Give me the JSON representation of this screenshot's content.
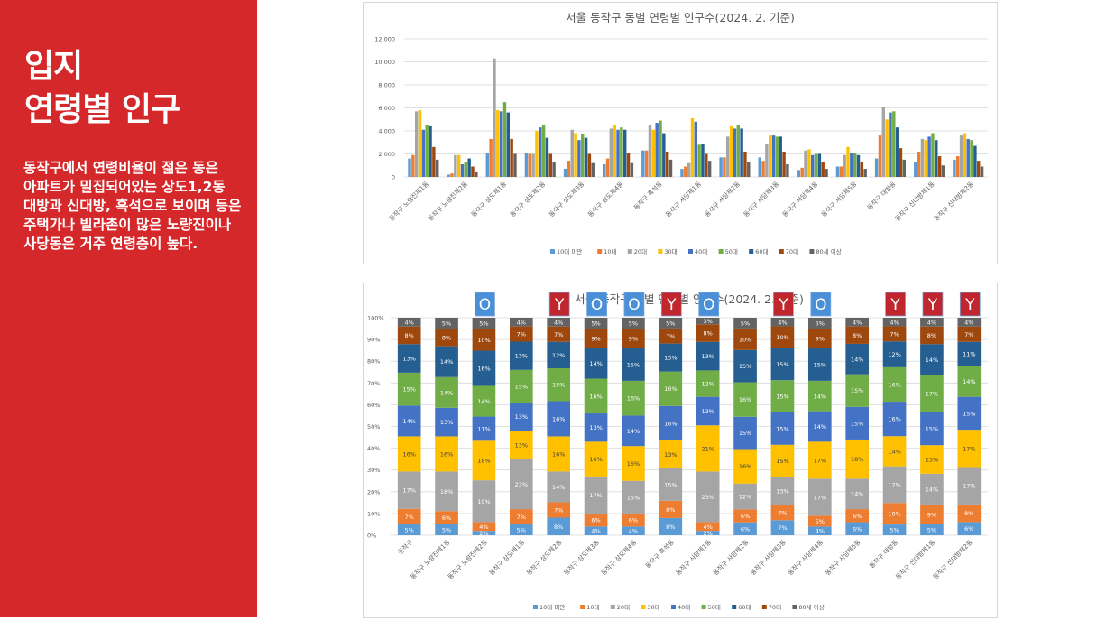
{
  "slide": {
    "title1": "입지",
    "title2": "연령별 인구",
    "description": "동작구에서 연령비율이 젊은 동은 아파트가 밀집되어있는 상도1,2동 대방과 신대방, 흑석으로 보이며 등은 주택가나 빌라촌이 많은 노량진이나 사당동은 거주 연령층이 높다."
  },
  "colors": {
    "panel": "#d5282b",
    "series": [
      "#5b9bd5",
      "#ed7d31",
      "#a5a5a5",
      "#ffc000",
      "#4472c4",
      "#70ad47",
      "#255e91",
      "#9e480e",
      "#636363"
    ],
    "tag_blue": "#4a90d9",
    "tag_red": "#c0262d"
  },
  "chart_data": [
    {
      "type": "bar",
      "title": "서울 동작구 동별 연령별 인구수(2024. 2. 기준)",
      "ylim": [
        0,
        12000
      ],
      "yticks": [
        "0",
        "2,000",
        "4,000",
        "6,000",
        "8,000",
        "10,000",
        "12,000"
      ],
      "grid": true,
      "legend_position": "bottom",
      "categories": [
        "동작구 노량진제1동",
        "동작구 노량진제2동",
        "동작구 상도제1동",
        "동작구 상도제2동",
        "동작구 상도제3동",
        "동작구 상도제4동",
        "동작구 흑석동",
        "동작구 사당제1동",
        "동작구 사당제2동",
        "동작구 사당제3동",
        "동작구 사당제4동",
        "동작구 사당제5동",
        "동작구 대방동",
        "동작구 신대방제1동",
        "동작구 신대방제2동"
      ],
      "series": [
        {
          "name": "10대 미만",
          "values": [
            1600,
            200,
            2100,
            2100,
            700,
            1100,
            2300,
            700,
            1700,
            1700,
            600,
            900,
            1600,
            1300,
            1500
          ]
        },
        {
          "name": "10대",
          "values": [
            1900,
            300,
            3300,
            2000,
            1400,
            1600,
            2300,
            900,
            1700,
            1400,
            800,
            900,
            3600,
            2200,
            1800
          ]
        },
        {
          "name": "20대",
          "values": [
            5700,
            1900,
            10300,
            2000,
            4100,
            4200,
            4500,
            1200,
            3500,
            2900,
            2300,
            1900,
            6100,
            3300,
            3600
          ]
        },
        {
          "name": "30대",
          "values": [
            5800,
            1900,
            5800,
            4000,
            3800,
            4500,
            4100,
            5100,
            4400,
            3600,
            2400,
            2600,
            5000,
            3200,
            3800
          ]
        },
        {
          "name": "40대",
          "values": [
            4100,
            1100,
            5700,
            4300,
            3200,
            4100,
            4700,
            4800,
            4200,
            3600,
            1900,
            2100,
            5600,
            3500,
            3300
          ]
        },
        {
          "name": "50대",
          "values": [
            4500,
            1300,
            6500,
            4500,
            3700,
            4300,
            4900,
            2800,
            4500,
            3500,
            2000,
            2100,
            5700,
            3800,
            3200
          ]
        },
        {
          "name": "60대",
          "values": [
            4400,
            1600,
            5600,
            3400,
            3400,
            4100,
            3800,
            2900,
            4200,
            3500,
            2000,
            1900,
            4300,
            3200,
            2700
          ]
        },
        {
          "name": "70대",
          "values": [
            2600,
            900,
            3300,
            2000,
            2000,
            2100,
            2200,
            2000,
            2200,
            2200,
            1300,
            1300,
            2500,
            1800,
            1400
          ]
        },
        {
          "name": "80세 이상",
          "values": [
            1500,
            400,
            2000,
            1300,
            1200,
            1200,
            1500,
            1400,
            1300,
            1100,
            700,
            700,
            1500,
            1000,
            900
          ]
        }
      ]
    },
    {
      "type": "bar",
      "stacked": true,
      "percent": true,
      "title": "서울 동작구 동별 연령별 인구수(2024. 2. 기준)",
      "ylim": [
        0,
        100
      ],
      "yticks": [
        "0%",
        "10%",
        "20%",
        "30%",
        "40%",
        "50%",
        "60%",
        "70%",
        "80%",
        "90%",
        "100%"
      ],
      "grid": true,
      "legend_position": "bottom",
      "categories": [
        "동작구",
        "동작구 노량진제1동",
        "동작구 노량진제2동",
        "동작구 상도제1동",
        "동작구 상도제2동",
        "동작구 상도제3동",
        "동작구 상도제4동",
        "동작구 흑석동",
        "동작구 사당제1동",
        "동작구 사당제2동",
        "동작구 사당제3동",
        "동작구 사당제4동",
        "동작구 사당제5동",
        "동작구 대방동",
        "동작구 신대방제1동",
        "동작구 신대방제2동"
      ],
      "series": [
        {
          "name": "10대 미만",
          "values": [
            5,
            5,
            2,
            5,
            8,
            4,
            4,
            8,
            2,
            6,
            7,
            4,
            6,
            5,
            5,
            6
          ],
          "labels": [
            "5%",
            "5%",
            "2%",
            "5%",
            "8%",
            "4%",
            "4%",
            "8%",
            "2%",
            "6%",
            "7%",
            "4%",
            "6%",
            "5%",
            "5%",
            "6%"
          ]
        },
        {
          "name": "10대",
          "values": [
            7,
            6,
            4,
            7,
            7,
            6,
            6,
            8,
            4,
            6,
            7,
            5,
            6,
            10,
            9,
            8
          ],
          "labels": [
            "7%",
            "6%",
            "4%",
            "7%",
            "7%",
            "6%",
            "6%",
            "8%",
            "4%",
            "6%",
            "7%",
            "5%",
            "6%",
            "10%",
            "9%",
            "8%"
          ]
        },
        {
          "name": "20대",
          "values": [
            17,
            18,
            19,
            23,
            14,
            17,
            15,
            15,
            23,
            12,
            13,
            17,
            14,
            17,
            14,
            17
          ],
          "labels": [
            "17%",
            "18%",
            "19%",
            "23%",
            "14%",
            "17%",
            "15%",
            "15%",
            "23%",
            "12%",
            "13%",
            "17%",
            "14%",
            "17%",
            "14%",
            "17%"
          ]
        },
        {
          "name": "30대",
          "values": [
            16,
            16,
            18,
            13,
            16,
            16,
            16,
            13,
            21,
            16,
            15,
            17,
            18,
            14,
            13,
            17
          ],
          "labels": [
            "16%",
            "16%",
            "18%",
            "13%",
            "16%",
            "16%",
            "16%",
            "13%",
            "21%",
            "16%",
            "15%",
            "17%",
            "18%",
            "14%",
            "13%",
            "17%"
          ]
        },
        {
          "name": "40대",
          "values": [
            14,
            13,
            11,
            13,
            16,
            13,
            14,
            16,
            13,
            15,
            15,
            14,
            15,
            16,
            15,
            15
          ],
          "labels": [
            "14%",
            "13%",
            "11%",
            "13%",
            "16%",
            "13%",
            "14%",
            "16%",
            "13%",
            "15%",
            "15%",
            "14%",
            "15%",
            "16%",
            "15%",
            "15%"
          ]
        },
        {
          "name": "50대",
          "values": [
            15,
            14,
            14,
            15,
            15,
            16,
            16,
            16,
            12,
            16,
            15,
            14,
            15,
            16,
            17,
            14
          ],
          "labels": [
            "15%",
            "14%",
            "14%",
            "15%",
            "15%",
            "16%",
            "16%",
            "16%",
            "12%",
            "16%",
            "15%",
            "14%",
            "15%",
            "16%",
            "17%",
            "14%"
          ]
        },
        {
          "name": "60대",
          "values": [
            13,
            14,
            16,
            13,
            12,
            14,
            15,
            13,
            13,
            15,
            15,
            15,
            14,
            12,
            14,
            11
          ],
          "labels": [
            "13%",
            "14%",
            "16%",
            "13%",
            "12%",
            "14%",
            "15%",
            "13%",
            "13%",
            "15%",
            "15%",
            "15%",
            "14%",
            "12%",
            "14%",
            "11%"
          ]
        },
        {
          "name": "70대",
          "values": [
            8,
            8,
            10,
            7,
            7,
            9,
            9,
            7,
            8,
            10,
            10,
            9,
            8,
            7,
            8,
            7
          ],
          "labels": [
            "8%",
            "8%",
            "10%",
            "7%",
            "7%",
            "9%",
            "9%",
            "7%",
            "8%",
            "10%",
            "10%",
            "9%",
            "8%",
            "7%",
            "8%",
            "7%"
          ]
        },
        {
          "name": "80세 이상",
          "values": [
            4,
            5,
            5,
            4,
            4,
            5,
            5,
            5,
            3,
            5,
            4,
            5,
            4,
            4,
            4,
            4
          ],
          "labels": [
            "4%",
            "5%",
            "5%",
            "4%",
            "4%",
            "5%",
            "5%",
            "5%",
            "3%",
            "5%",
            "4%",
            "5%",
            "4%",
            "4%",
            "4%",
            "4%"
          ]
        }
      ],
      "tags": [
        "",
        "",
        "O",
        "",
        "Y",
        "O",
        "O",
        "Y",
        "O",
        "",
        "Y",
        "O",
        "",
        "Y",
        "Y",
        "Y"
      ]
    }
  ]
}
